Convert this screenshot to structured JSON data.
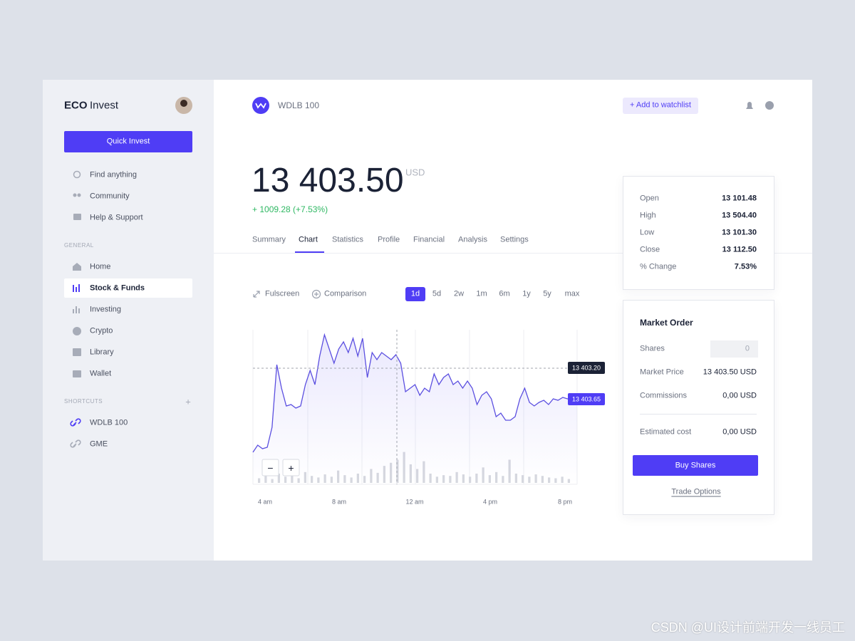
{
  "sidebar": {
    "brand_bold": "ECO",
    "brand": "Invest",
    "quick_invest": "Quick Invest",
    "top_links": [
      "Find anything",
      "Community",
      "Help & Support"
    ],
    "general_label": "GENERAL",
    "general": [
      "Home",
      "Stock & Funds",
      "Investing",
      "Crypto",
      "Library",
      "Wallet"
    ],
    "shortcuts_label": "SHORTCUTS",
    "shortcuts_add": "+",
    "shortcuts": [
      "WDLB 100",
      "GME"
    ]
  },
  "header": {
    "ticker": "WDLB 100",
    "watchlist": "+ Add to watchlist"
  },
  "quote": {
    "price": "13 403.50",
    "currency": "USD",
    "change": "+ 1009.28 (+7.53%)"
  },
  "tabs": [
    "Summary",
    "Chart",
    "Statistics",
    "Profile",
    "Financial",
    "Analysis",
    "Settings"
  ],
  "chart_tools": [
    "Fulscreen",
    "Comparison"
  ],
  "ranges": [
    "1d",
    "5d",
    "2w",
    "1m",
    "6m",
    "1y",
    "5y",
    "max"
  ],
  "stats": [
    [
      "Open",
      "13 101.48"
    ],
    [
      "High",
      "13 504.40"
    ],
    [
      "Low",
      "13 101.30"
    ],
    [
      "Close",
      "13 112.50"
    ],
    [
      "% Change",
      "7.53%"
    ]
  ],
  "order": {
    "title": "Market Order",
    "shares_label": "Shares",
    "shares": "0",
    "rows": [
      [
        "Market Price",
        "13 403.50 USD"
      ],
      [
        "Commissions",
        "0,00 USD"
      ]
    ],
    "estimated_label": "Estimated cost",
    "estimated": "0,00 USD",
    "buy": "Buy Shares",
    "trade_options": "Trade Options"
  },
  "chart_data": {
    "type": "line",
    "x_labels": [
      "4 am",
      "8 am",
      "12 am",
      "4 pm",
      "8 pm"
    ],
    "ylim": [
      0,
      217
    ],
    "series": [
      {
        "color": "#5b4fe0",
        "values": [
          45,
          55,
          50,
          52,
          80,
          168,
          135,
          110,
          112,
          107,
          110,
          140,
          160,
          140,
          180,
          210,
          190,
          170,
          190,
          200,
          185,
          205,
          180,
          205,
          150,
          185,
          175,
          185,
          180,
          175,
          182,
          170,
          130,
          135,
          140,
          125,
          135,
          130,
          155,
          140,
          150,
          155,
          140,
          145,
          135,
          145,
          135,
          112,
          125,
          130,
          120,
          95,
          100,
          90,
          90,
          95,
          120,
          135,
          115,
          110,
          115,
          118,
          112,
          120,
          118,
          122,
          120,
          120,
          119
        ]
      }
    ],
    "volume": [
      6,
      9,
      5,
      12,
      8,
      10,
      6,
      14,
      9,
      7,
      11,
      8,
      16,
      10,
      7,
      12,
      9,
      18,
      13,
      22,
      26,
      30,
      40,
      24,
      18,
      28,
      12,
      8,
      10,
      9,
      14,
      11,
      8,
      12,
      20,
      10,
      14,
      9,
      30,
      12,
      10,
      8,
      11,
      9,
      7,
      6,
      8,
      5
    ],
    "volume_ylim": [
      0,
      50
    ],
    "crosshair_label": "13 403.20",
    "last_label": "13 403.65",
    "zoom": [
      "−",
      "+"
    ]
  },
  "watermark": "CSDN @UI设计前端开发一线员工"
}
